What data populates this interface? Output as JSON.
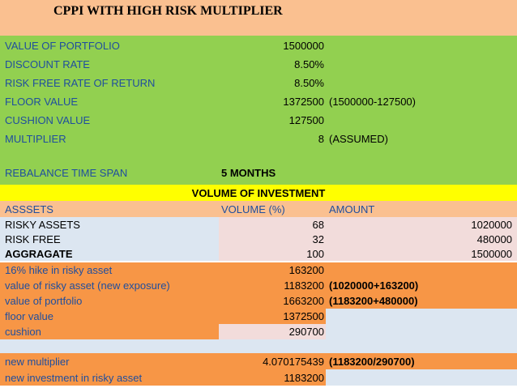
{
  "title": "CPPI WITH HIGH RISK MULTIPLIER",
  "params": [
    {
      "label": "VALUE OF PORTFOLIO",
      "value": "1500000",
      "note": ""
    },
    {
      "label": "DISCOUNT RATE",
      "value": "8.50%",
      "note": ""
    },
    {
      "label": "RISK FREE RATE OF RETURN",
      "value": "8.50%",
      "note": ""
    },
    {
      "label": "FLOOR VALUE",
      "value": "1372500",
      "note": "(1500000-127500)"
    },
    {
      "label": "CUSHION VALUE",
      "value": "127500",
      "note": ""
    },
    {
      "label": "MULTIPLIER",
      "value": "8",
      "note": "(ASSUMED)"
    }
  ],
  "rebalance": {
    "label": "REBALANCE TIME SPAN",
    "value": "5 MONTHS"
  },
  "investment_title": "VOLUME OF INVESTMENT",
  "table_headers": {
    "assets": "ASSSETS",
    "volume": "VOLUME (%)",
    "amount": "AMOUNT"
  },
  "assets": [
    {
      "label": "RISKY ASSETS",
      "volume": "68",
      "amount": "1020000"
    },
    {
      "label": "RISK FREE",
      "volume": "32",
      "amount": "480000"
    },
    {
      "label": "AGGRAGATE",
      "volume": "100",
      "amount": "1500000"
    }
  ],
  "calc": [
    {
      "label": "16% hike in risky asset",
      "value": "163200",
      "note": ""
    },
    {
      "label": "value of risky asset (new exposure)",
      "value": "1183200",
      "note": "(1020000+163200)"
    },
    {
      "label": "value of portfolio",
      "value": "1663200",
      "note": "(1183200+480000)"
    },
    {
      "label": "floor value",
      "value": "1372500",
      "note": ""
    },
    {
      "label": "cushion",
      "value": "290700",
      "note": ""
    }
  ],
  "final": [
    {
      "label": "new multiplier",
      "value": "4.070175439",
      "note": "(1183200/290700)"
    },
    {
      "label": "new investment in risky asset",
      "value": "1183200",
      "note": ""
    }
  ],
  "colors": {
    "title_band": "#fac090",
    "params_band": "#92d050",
    "label_text": "#1f4e9e",
    "highlight": "#ffff00",
    "orange": "#f79646",
    "light_blue": "#dce6f1",
    "pink": "#f2dcdb"
  }
}
